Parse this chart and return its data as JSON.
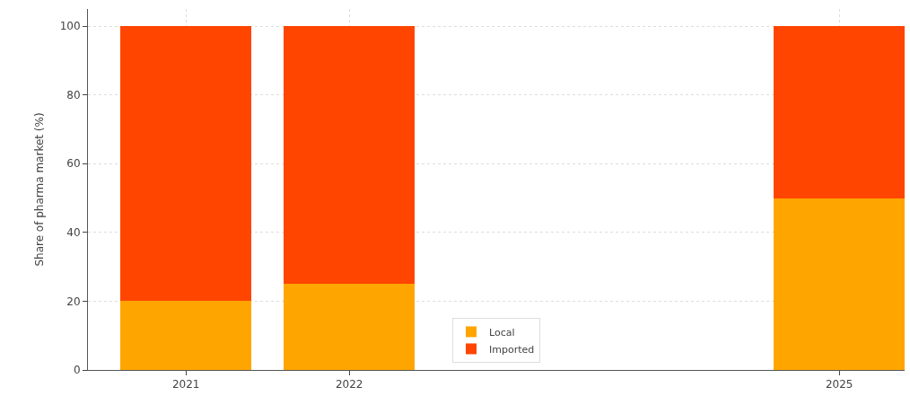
{
  "chart_data": {
    "type": "bar",
    "stacked": true,
    "ylabel": "Share of pharma market (%)",
    "x": [
      2021,
      2022,
      2025
    ],
    "series": [
      {
        "name": "Local",
        "color": "#ffa500",
        "values": [
          20,
          25,
          50
        ]
      },
      {
        "name": "Imported",
        "color": "#ff4500",
        "values": [
          80,
          75,
          50
        ]
      }
    ],
    "xlim": [
      2020.4,
      2025.4
    ],
    "xticks": [
      2021,
      2022,
      2025
    ],
    "ylim": [
      0,
      105
    ],
    "yticks": [
      0,
      20,
      40,
      60,
      80,
      100
    ],
    "grid": true,
    "legend": "bottom"
  }
}
